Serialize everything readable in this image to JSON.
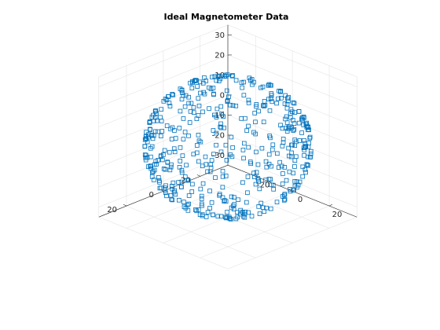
{
  "chart_data": {
    "type": "scatter",
    "subtype": "scatter3d",
    "title": "Ideal Magnetometer Data",
    "xlabel": "",
    "ylabel": "",
    "zlabel": "",
    "xlim": [
      -35,
      35
    ],
    "ylim": [
      -35,
      35
    ],
    "zlim": [
      -35,
      35
    ],
    "x_ticks": [
      -20,
      0,
      20
    ],
    "y_ticks": [
      -20,
      0,
      20
    ],
    "z_ticks": [
      -30,
      -20,
      -10,
      0,
      10,
      20,
      30
    ],
    "x_tick_labels": [
      "-20",
      "0",
      "20"
    ],
    "y_tick_labels": [
      "-20",
      "0",
      "20"
    ],
    "z_tick_labels": [
      "-30",
      "-20",
      "-10",
      "0",
      "10",
      "20",
      "30"
    ],
    "grid": true,
    "legend": "none",
    "marker": "square",
    "marker_color": "#0072BD",
    "series": [
      {
        "shape": "sphere",
        "center": [
          0,
          0,
          0
        ],
        "radius": 32,
        "point_count": 500
      }
    ]
  }
}
